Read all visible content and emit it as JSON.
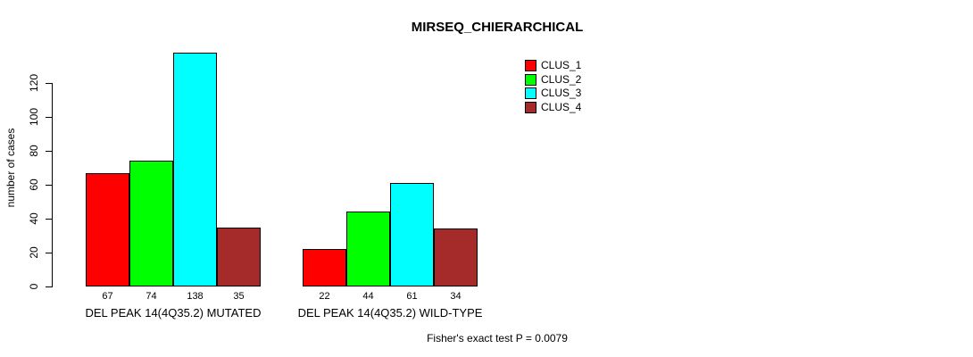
{
  "title": "MIRSEQ_CHIERARCHICAL",
  "ylabel": "number of cases",
  "footer": "Fisher's exact test P = 0.0079",
  "legend": {
    "items": [
      {
        "label": "CLUS_1",
        "color": "#FF0000"
      },
      {
        "label": "CLUS_2",
        "color": "#00FF00"
      },
      {
        "label": "CLUS_3",
        "color": "#00FFFF"
      },
      {
        "label": "CLUS_4",
        "color": "#A52A2A"
      }
    ]
  },
  "chart_data": {
    "type": "bar",
    "title": "MIRSEQ_CHIERARCHICAL",
    "xlabel": "",
    "ylabel": "number of cases",
    "categories": [
      "DEL PEAK 14(4Q35.2) MUTATED",
      "DEL PEAK 14(4Q35.2) WILD-TYPE"
    ],
    "series": [
      {
        "name": "CLUS_1",
        "color": "#FF0000",
        "values": [
          67,
          22
        ]
      },
      {
        "name": "CLUS_2",
        "color": "#00FF00",
        "values": [
          74,
          44
        ]
      },
      {
        "name": "CLUS_3",
        "color": "#00FFFF",
        "values": [
          138,
          61
        ]
      },
      {
        "name": "CLUS_4",
        "color": "#A52A2A",
        "values": [
          35,
          34
        ]
      }
    ],
    "bar_value_labels": [
      [
        67,
        74,
        138,
        35
      ],
      [
        22,
        44,
        61,
        34
      ]
    ],
    "yticks": [
      0,
      20,
      40,
      60,
      80,
      100,
      120
    ],
    "ylim": [
      0,
      138
    ],
    "grid": false,
    "legend_position": "top-right",
    "annotation": "Fisher's exact test P = 0.0079"
  }
}
